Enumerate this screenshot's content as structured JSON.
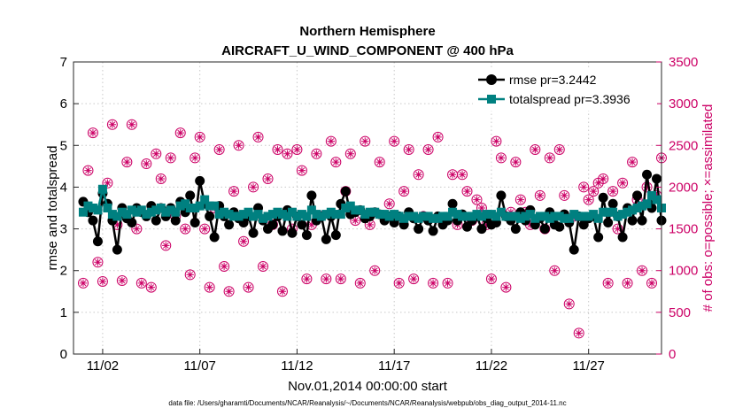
{
  "chart_data": {
    "type": "line",
    "title": "Northern Hemisphere",
    "subtitle": "AIRCRAFT_U_WIND_COMPONENT @ 400 hPa",
    "xlabel": "Nov.01,2014 00:00:00 start",
    "ylabel_left": "rmse and totalspread",
    "ylabel_right": "# of obs: o=possible; ×=assimilated",
    "footnote": "data file: /Users/gharamti/Documents/NCAR/Reanalysis/~/Documents/NCAR/Reanalysis/webpub/obs_diag_output_2014-11.nc",
    "xlim": [
      0.5,
      30.75
    ],
    "ylim_left": [
      0,
      7
    ],
    "ylim_right": [
      0,
      3500
    ],
    "x_ticks": [
      {
        "value": 2,
        "label": "11/02"
      },
      {
        "value": 7,
        "label": "11/07"
      },
      {
        "value": 12,
        "label": "11/12"
      },
      {
        "value": 17,
        "label": "11/17"
      },
      {
        "value": 22,
        "label": "11/22"
      },
      {
        "value": 27,
        "label": "11/27"
      }
    ],
    "y_ticks_left": [
      {
        "value": 0,
        "label": "0"
      },
      {
        "value": 1,
        "label": "1"
      },
      {
        "value": 2,
        "label": "2"
      },
      {
        "value": 3,
        "label": "3"
      },
      {
        "value": 4,
        "label": "4"
      },
      {
        "value": 5,
        "label": "5"
      },
      {
        "value": 6,
        "label": "6"
      },
      {
        "value": 7,
        "label": "7"
      }
    ],
    "y_ticks_right": [
      {
        "value": 0,
        "label": "0"
      },
      {
        "value": 500,
        "label": "500"
      },
      {
        "value": 1000,
        "label": "1000"
      },
      {
        "value": 1500,
        "label": "1500"
      },
      {
        "value": 2000,
        "label": "2000"
      },
      {
        "value": 2500,
        "label": "2500"
      },
      {
        "value": 3000,
        "label": "3000"
      },
      {
        "value": 3500,
        "label": "3500"
      }
    ],
    "legend": [
      {
        "name": "rmse pr=3.2442",
        "color": "#000000",
        "marker": "circle"
      },
      {
        "name": "totalspread pr=3.3936",
        "color": "#008080",
        "marker": "square"
      }
    ],
    "colors": {
      "rmse": "#000000",
      "totalspread": "#008080",
      "obs": "#cc0066"
    },
    "x": [
      1.0,
      1.25,
      1.5,
      1.75,
      2.0,
      2.25,
      2.5,
      2.75,
      3.0,
      3.25,
      3.5,
      3.75,
      4.0,
      4.25,
      4.5,
      4.75,
      5.0,
      5.25,
      5.5,
      5.75,
      6.0,
      6.25,
      6.5,
      6.75,
      7.0,
      7.25,
      7.5,
      7.75,
      8.0,
      8.25,
      8.5,
      8.75,
      9.0,
      9.25,
      9.5,
      9.75,
      10.0,
      10.25,
      10.5,
      10.75,
      11.0,
      11.25,
      11.5,
      11.75,
      12.0,
      12.25,
      12.5,
      12.75,
      13.0,
      13.25,
      13.5,
      13.75,
      14.0,
      14.25,
      14.5,
      14.75,
      15.0,
      15.25,
      15.5,
      15.75,
      16.0,
      16.25,
      16.5,
      16.75,
      17.0,
      17.25,
      17.5,
      17.75,
      18.0,
      18.25,
      18.5,
      18.75,
      19.0,
      19.25,
      19.5,
      19.75,
      20.0,
      20.25,
      20.5,
      20.75,
      21.0,
      21.25,
      21.5,
      21.75,
      22.0,
      22.25,
      22.5,
      22.75,
      23.0,
      23.25,
      23.5,
      23.75,
      24.0,
      24.25,
      24.5,
      24.75,
      25.0,
      25.25,
      25.5,
      25.75,
      26.0,
      26.25,
      26.5,
      26.75,
      27.0,
      27.25,
      27.5,
      27.75,
      28.0,
      28.25,
      28.5,
      28.75,
      29.0,
      29.25,
      29.5,
      29.75,
      30.0,
      30.25,
      30.5,
      30.75
    ],
    "series": [
      {
        "name": "rmse",
        "values": [
          3.65,
          3.4,
          3.2,
          2.7,
          3.85,
          3.6,
          3.2,
          2.5,
          3.5,
          3.25,
          3.15,
          3.5,
          3.4,
          3.3,
          3.55,
          3.2,
          3.5,
          3.3,
          3.5,
          3.2,
          3.65,
          3.4,
          3.8,
          3.15,
          4.15,
          3.6,
          3.3,
          2.8,
          3.55,
          3.3,
          3.1,
          3.4,
          3.25,
          3.15,
          3.3,
          2.9,
          3.5,
          3.2,
          3.0,
          3.1,
          3.3,
          2.95,
          3.45,
          2.9,
          3.3,
          3.1,
          2.85,
          3.8,
          3.2,
          3.3,
          2.75,
          3.3,
          2.85,
          3.6,
          3.9,
          3.35,
          3.4,
          3.45,
          3.25,
          3.3,
          3.4,
          3.35,
          3.2,
          3.3,
          3.15,
          3.3,
          3.1,
          3.4,
          3.25,
          3.0,
          3.3,
          3.2,
          2.95,
          3.3,
          3.1,
          3.2,
          3.6,
          3.2,
          3.35,
          3.05,
          3.2,
          3.3,
          3.0,
          3.25,
          3.1,
          3.15,
          3.8,
          3.3,
          3.2,
          3.0,
          3.4,
          3.2,
          3.45,
          3.1,
          3.25,
          3.0,
          3.4,
          3.1,
          3.05,
          3.35,
          3.15,
          2.5,
          3.3,
          3.1,
          3.25,
          3.3,
          2.8,
          3.75,
          3.15,
          3.6,
          3.3,
          2.8,
          3.5,
          3.2,
          3.8,
          3.2,
          4.3,
          3.5,
          4.2,
          3.2
        ]
      },
      {
        "name": "totalspread",
        "values": [
          3.4,
          3.55,
          3.5,
          3.45,
          3.95,
          3.5,
          3.35,
          3.3,
          3.4,
          3.35,
          3.45,
          3.4,
          3.45,
          3.35,
          3.4,
          3.45,
          3.5,
          3.4,
          3.45,
          3.4,
          3.55,
          3.6,
          3.5,
          3.5,
          3.55,
          3.7,
          3.55,
          3.55,
          3.35,
          3.4,
          3.35,
          3.3,
          3.3,
          3.35,
          3.4,
          3.3,
          3.35,
          3.25,
          3.3,
          3.35,
          3.4,
          3.35,
          3.3,
          3.4,
          3.3,
          3.35,
          3.3,
          3.45,
          3.35,
          3.3,
          3.35,
          3.4,
          3.35,
          3.35,
          3.5,
          3.55,
          3.45,
          3.45,
          3.35,
          3.4,
          3.4,
          3.35,
          3.35,
          3.3,
          3.35,
          3.3,
          3.25,
          3.3,
          3.3,
          3.25,
          3.3,
          3.3,
          3.25,
          3.25,
          3.3,
          3.3,
          3.4,
          3.35,
          3.3,
          3.3,
          3.3,
          3.35,
          3.3,
          3.35,
          3.35,
          3.3,
          3.4,
          3.3,
          3.3,
          3.3,
          3.25,
          3.3,
          3.35,
          3.25,
          3.3,
          3.3,
          3.25,
          3.3,
          3.3,
          3.25,
          3.25,
          3.35,
          3.3,
          3.3,
          3.3,
          3.35,
          3.25,
          3.4,
          3.4,
          3.4,
          3.3,
          3.35,
          3.4,
          3.45,
          3.5,
          3.55,
          3.6,
          3.8,
          3.7,
          3.5
        ]
      },
      {
        "name": "obs_possible",
        "values": [
          850,
          2200,
          2650,
          1100,
          870,
          2050,
          2750,
          1550,
          880,
          2300,
          2750,
          1500,
          850,
          2280,
          800,
          2400,
          2100,
          1300,
          2350,
          1650,
          2650,
          1500,
          950,
          2350,
          2600,
          1500,
          800,
          1750,
          2450,
          1050,
          750,
          1950,
          2500,
          1350,
          800,
          2000,
          2600,
          1050,
          2100,
          1550,
          2450,
          750,
          2400,
          1500,
          2450,
          2200,
          900,
          1550,
          2400,
          1650,
          900,
          2550,
          2300,
          900,
          1950,
          2400,
          1600,
          850,
          2550,
          1550,
          1000,
          2300,
          1650,
          1800,
          2550,
          850,
          1950,
          2450,
          900,
          2150,
          1650,
          2450,
          850,
          2600,
          1600,
          850,
          2150,
          1550,
          2150,
          1950,
          1600,
          1850,
          1750,
          1550,
          900,
          2550,
          2350,
          800,
          1700,
          2300,
          1850,
          1700,
          1550,
          2450,
          1900,
          1500,
          2350,
          1000,
          2450,
          1900,
          600,
          1650,
          250,
          2000,
          1850,
          1950,
          2050,
          2100,
          850,
          1950,
          1500,
          2050,
          850,
          2300,
          1850,
          1000,
          2000,
          850,
          1900,
          2350
        ]
      }
    ]
  }
}
